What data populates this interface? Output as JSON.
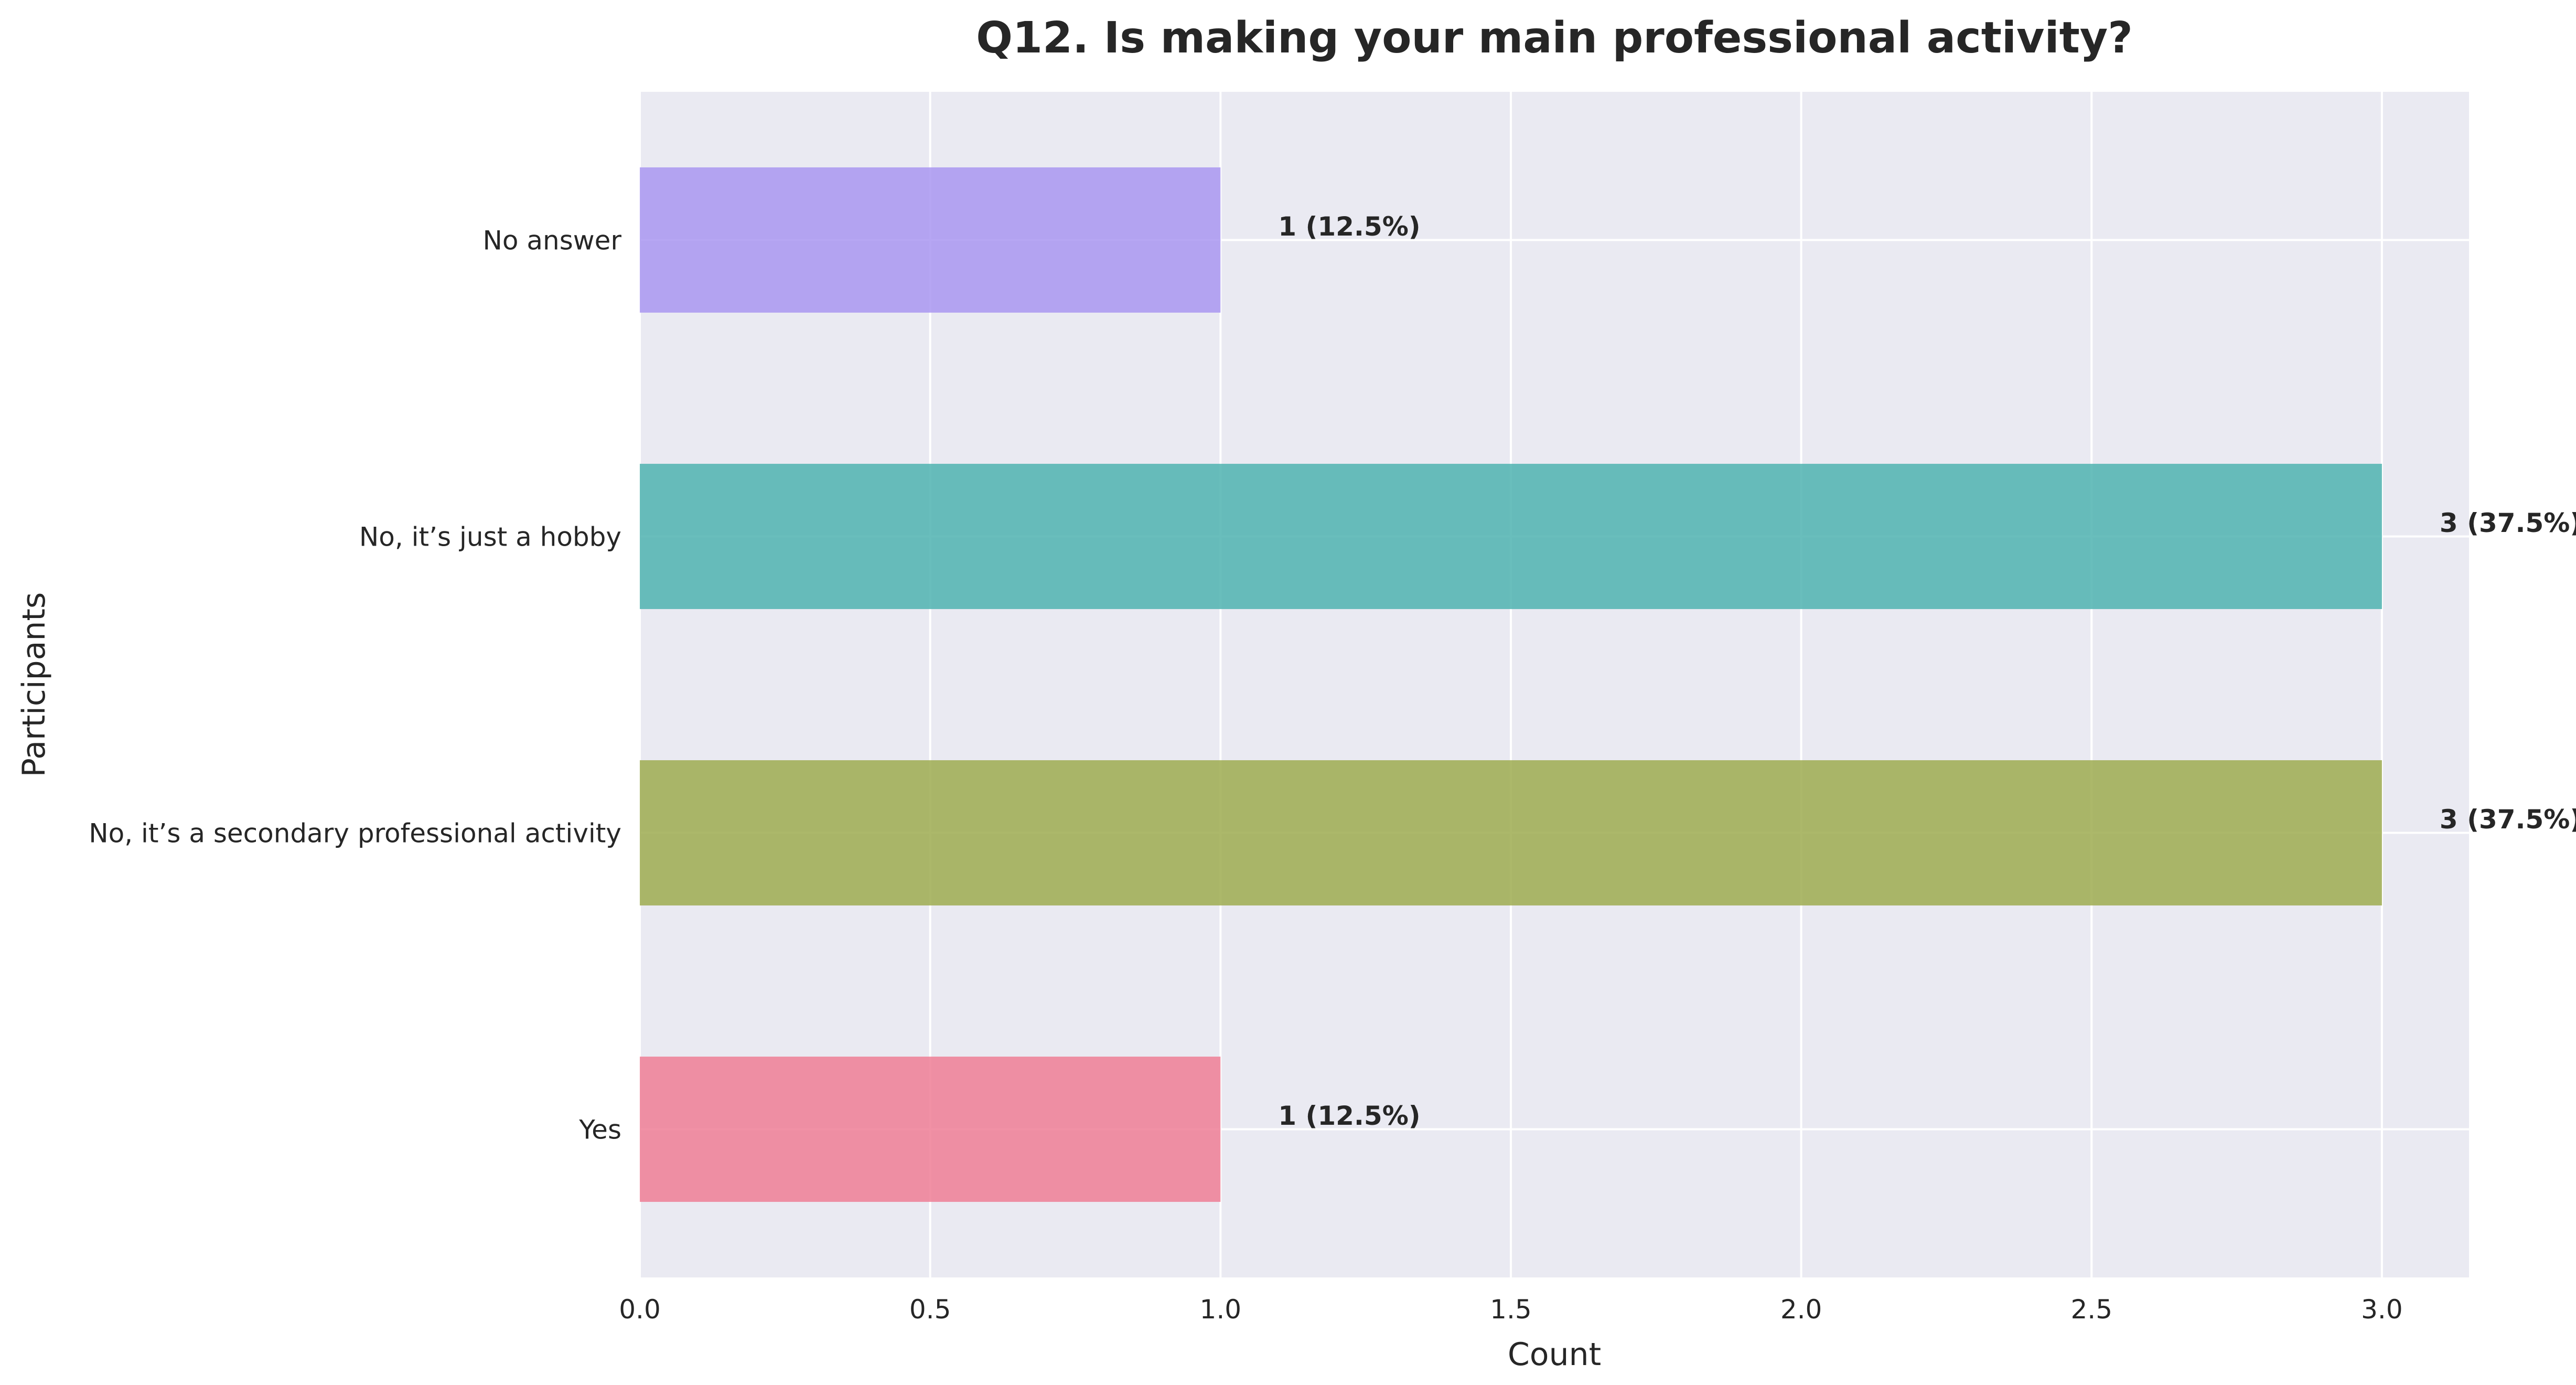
{
  "chart_data": {
    "type": "bar",
    "orientation": "horizontal",
    "title": "Q12. Is making your main professional activity?",
    "xlabel": "Count",
    "ylabel": "Participants",
    "categories": [
      "No answer",
      "No, it’s just a hobby",
      "No, it’s a secondary professional activity",
      "Yes"
    ],
    "values": [
      1,
      3,
      3,
      1
    ],
    "data_labels": [
      "1 (12.5%)",
      "3 (37.5%)",
      "3 (37.5%)",
      "1 (12.5%)"
    ],
    "colors": [
      "#a997f1",
      "#4fb3b0",
      "#9eac50",
      "#ef7e95"
    ],
    "xlim": [
      0,
      3.15
    ],
    "xticks": [
      "0.0",
      "0.5",
      "1.0",
      "1.5",
      "2.0",
      "2.5",
      "3.0"
    ],
    "grid": true,
    "background": "#eaeaf2"
  }
}
